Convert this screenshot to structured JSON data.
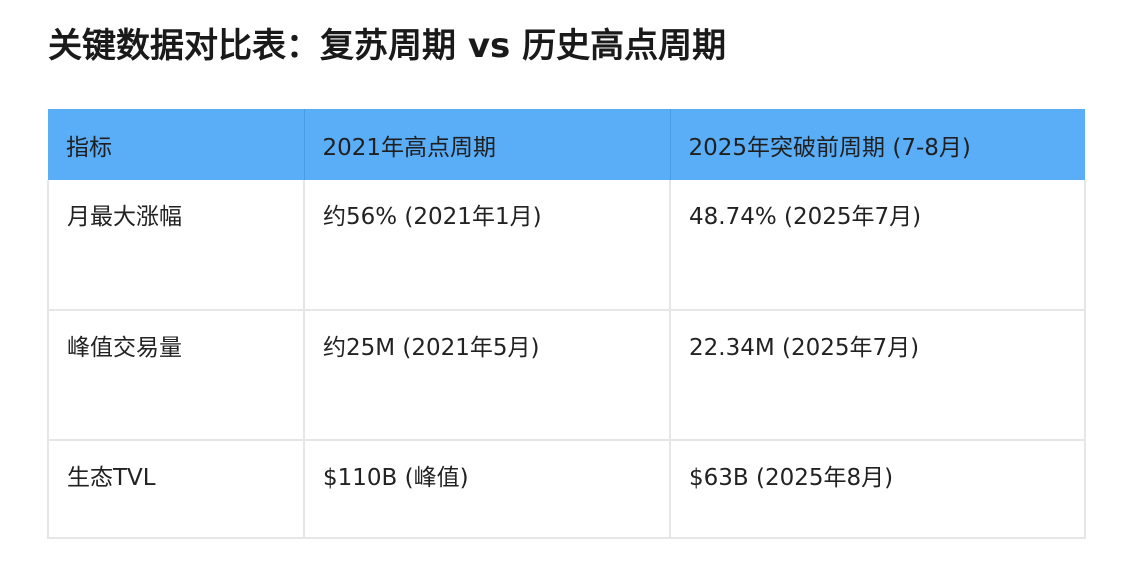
{
  "title": "关键数据对比表：复苏周期 vs 历史高点周期",
  "table": {
    "headers": [
      "指标",
      "2021年高点周期",
      "2025年突破前周期 (7-8月)"
    ],
    "rows": [
      [
        "月最大涨幅",
        "约56% (2021年1月)",
        "48.74% (2025年7月)"
      ],
      [
        "峰值交易量",
        "约25M (2021年5月)",
        "22.34M (2025年7月)"
      ],
      [
        "生态TVL",
        "$110B (峰值)",
        "$63B (2025年8月)"
      ]
    ]
  },
  "colors": {
    "header_background": "#5aaef8",
    "border": "#e6e6e6"
  }
}
